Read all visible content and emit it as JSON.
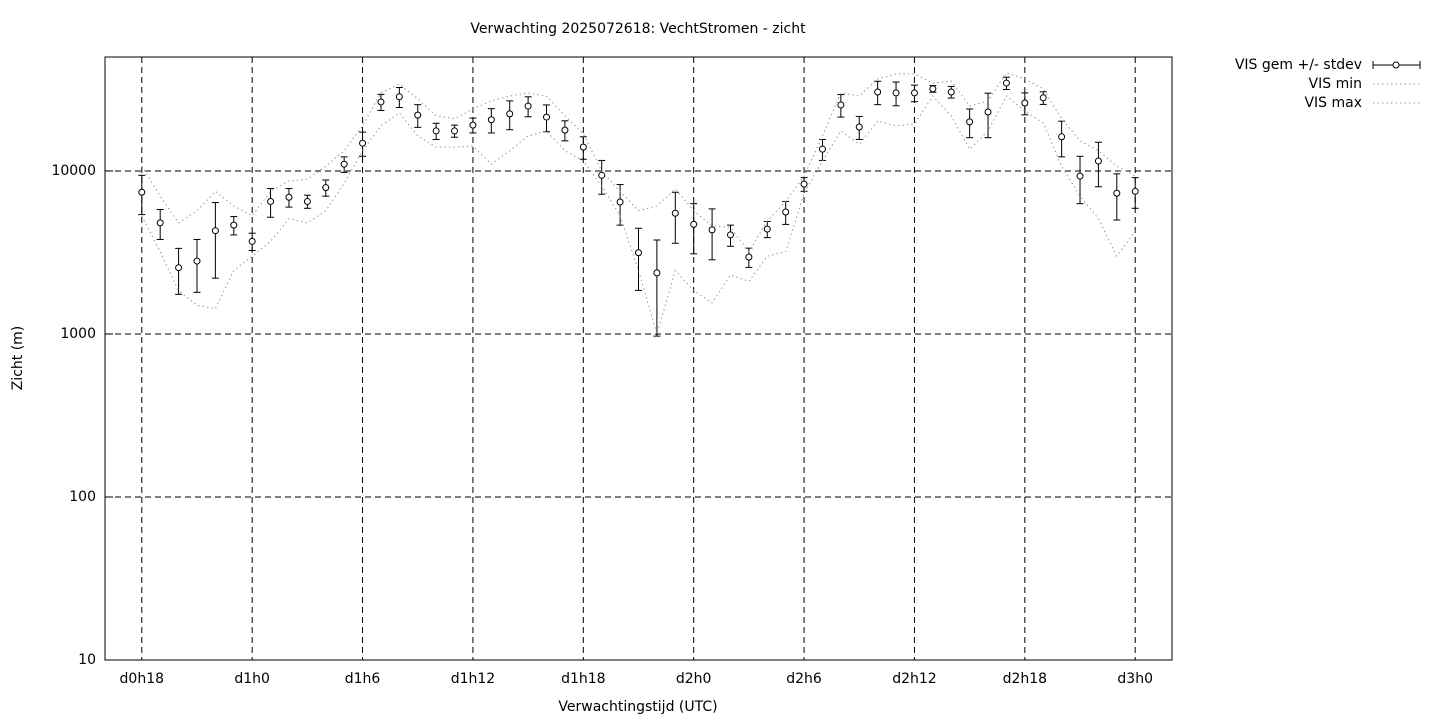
{
  "chart_data": {
    "type": "errorbar-line",
    "title": "Verwachting 2025072618: VechtStromen - zicht",
    "x_label": "Verwachtingstijd (UTC)",
    "y_label": "Zicht (m)",
    "x": [
      18,
      19,
      20,
      21,
      22,
      23,
      24,
      25,
      26,
      27,
      28,
      29,
      30,
      31,
      32,
      33,
      34,
      35,
      36,
      37,
      38,
      39,
      40,
      41,
      42,
      43,
      44,
      45,
      46,
      47,
      48,
      49,
      50,
      51,
      52,
      53,
      54,
      55,
      56,
      57,
      58,
      59,
      60,
      61,
      62,
      63,
      64,
      65,
      66,
      67,
      68,
      69,
      70,
      71,
      72
    ],
    "xlim": [
      16,
      74
    ],
    "xticks": [
      {
        "value": 18,
        "label": "d0h18"
      },
      {
        "value": 24,
        "label": "d1h0"
      },
      {
        "value": 30,
        "label": "d1h6"
      },
      {
        "value": 36,
        "label": "d1h12"
      },
      {
        "value": 42,
        "label": "d1h18"
      },
      {
        "value": 48,
        "label": "d2h0"
      },
      {
        "value": 54,
        "label": "d2h6"
      },
      {
        "value": 60,
        "label": "d2h12"
      },
      {
        "value": 66,
        "label": "d2h18"
      },
      {
        "value": 72,
        "label": "d3h0"
      }
    ],
    "ylim": [
      10,
      50000
    ],
    "yticks": [
      10,
      100,
      1000,
      10000
    ],
    "log_y": true,
    "grid": true,
    "legend": "outside-top-right",
    "series": [
      {
        "name": "VIS gem +/- stdev",
        "color": "#000000",
        "values": [
          7400,
          4800,
          2550,
          2800,
          4300,
          4650,
          3700,
          6500,
          6900,
          6500,
          7900,
          11000,
          14800,
          26500,
          28500,
          22000,
          17600,
          17600,
          19100,
          20600,
          22400,
          25000,
          21400,
          17800,
          14000,
          9400,
          6450,
          3150,
          2370,
          5500,
          4700,
          4350,
          4050,
          2960,
          4400,
          5600,
          8300,
          13600,
          25400,
          18600,
          30500,
          30100,
          30100,
          31900,
          30500,
          20000,
          23000,
          34600,
          26100,
          28100,
          16200,
          9300,
          11500,
          7300,
          7500
        ],
        "errors": [
          2000,
          1000,
          800,
          1000,
          2100,
          600,
          450,
          1300,
          900,
          600,
          900,
          1200,
          2500,
          3000,
          4000,
          3500,
          2000,
          1500,
          2000,
          3500,
          4500,
          3500,
          4000,
          2500,
          2200,
          2200,
          1800,
          1300,
          1400,
          1900,
          1600,
          1500,
          600,
          400,
          500,
          900,
          800,
          2000,
          4000,
          3000,
          5000,
          5000,
          3500,
          1500,
          2500,
          4000,
          7000,
          3000,
          4000,
          2500,
          4000,
          3000,
          3500,
          2300,
          1600
        ]
      },
      {
        "name": "VIS min",
        "color": "#999999",
        "values": [
          5300,
          3200,
          1840,
          1500,
          1430,
          2450,
          3000,
          3700,
          5100,
          4800,
          5700,
          8400,
          13300,
          18900,
          22700,
          16400,
          14000,
          14000,
          14200,
          11000,
          13300,
          16400,
          17600,
          13300,
          11500,
          8100,
          5300,
          2450,
          1000,
          2450,
          1840,
          1550,
          2300,
          2100,
          3000,
          3200,
          7300,
          11500,
          17600,
          14600,
          20200,
          18900,
          19400,
          28800,
          21800,
          13600,
          17600,
          28800,
          23300,
          19700,
          10700,
          7000,
          5100,
          3000,
          4300
        ]
      },
      {
        "name": "VIS max",
        "color": "#999999",
        "values": [
          10700,
          7000,
          4800,
          5700,
          7500,
          6100,
          5300,
          7500,
          8700,
          8900,
          10700,
          13300,
          18900,
          30100,
          34100,
          27700,
          21800,
          20900,
          24000,
          26900,
          28800,
          30100,
          28800,
          21800,
          16900,
          10000,
          7500,
          5700,
          6100,
          7750,
          5700,
          4600,
          4500,
          3200,
          4940,
          6500,
          9300,
          16400,
          30100,
          28800,
          36700,
          39400,
          39400,
          34600,
          35600,
          25000,
          26900,
          40000,
          36700,
          31900,
          20900,
          15300,
          13300,
          10700,
          9300
        ]
      }
    ]
  }
}
